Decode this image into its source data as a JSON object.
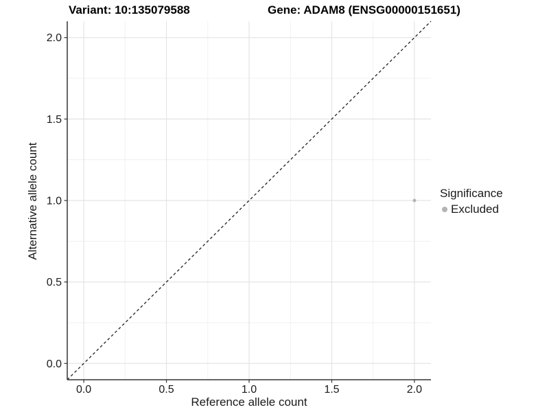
{
  "header": {
    "variant_title": "Variant: 10:135079588",
    "gene_title": "Gene: ADAM8 (ENSG00000151651)"
  },
  "chart_data": {
    "type": "scatter",
    "xlabel": "Reference allele count",
    "ylabel": "Alternative allele count",
    "xlim": [
      -0.1,
      2.1
    ],
    "ylim": [
      -0.1,
      2.1
    ],
    "xticks": {
      "values": [
        0,
        0.5,
        1,
        1.5,
        2
      ],
      "labels": [
        "0.0",
        "0.5",
        "1.0",
        "1.5",
        "2.0"
      ]
    },
    "yticks": {
      "values": [
        0,
        0.5,
        1,
        1.5,
        2
      ],
      "labels": [
        "0.0",
        "0.5",
        "1.0",
        "1.5",
        "2.0"
      ]
    },
    "minor_ticks": [
      0.25,
      0.75,
      1.25,
      1.75
    ],
    "grid": {
      "major_color": "#e4e4e4",
      "minor_color": "#f1f1f1"
    },
    "axis_color": "#333333",
    "identity_line": {
      "style": "dashed",
      "color": "#1f1f1f",
      "from": -0.1,
      "to": 2.1
    },
    "series": [
      {
        "name": "Excluded",
        "color": "#b4b4b4",
        "points": [
          {
            "x": 2,
            "y": 1
          }
        ]
      }
    ]
  },
  "legend": {
    "title": "Significance",
    "items": [
      {
        "label": "Excluded",
        "color": "#b4b4b4"
      }
    ]
  }
}
